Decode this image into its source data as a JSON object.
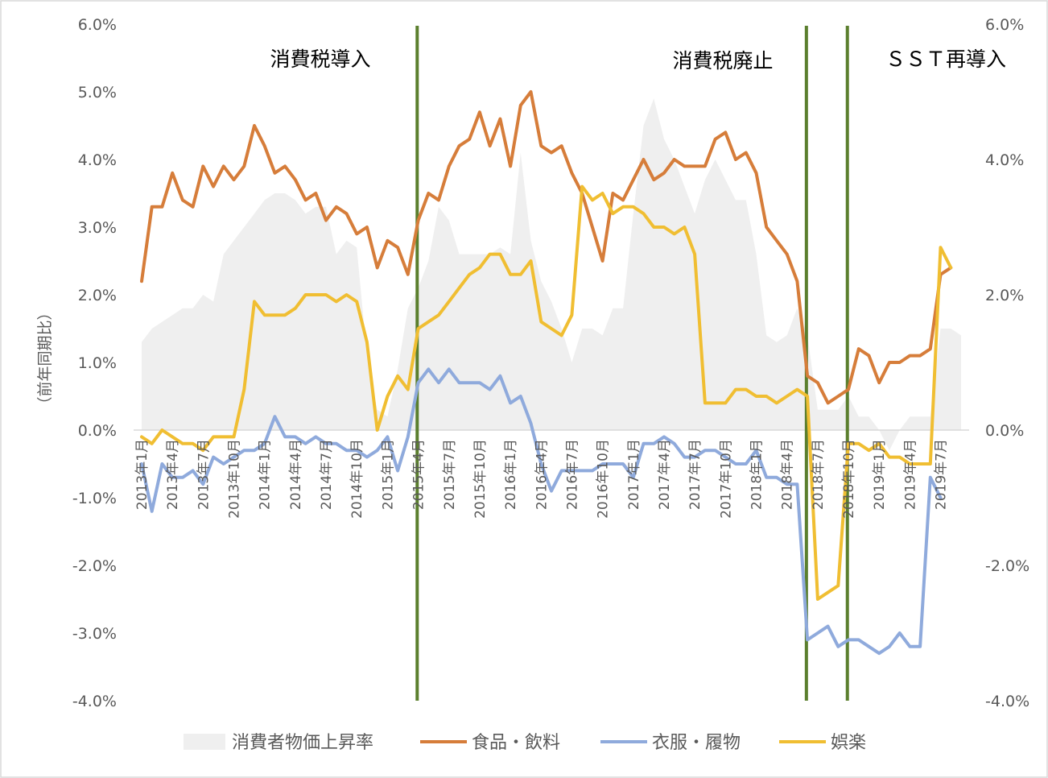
{
  "chart_data": {
    "type": "line",
    "ylabel": "（前年同期比）",
    "y_left": {
      "ticks": [
        "6.0%",
        "5.0%",
        "4.0%",
        "3.0%",
        "2.0%",
        "1.0%",
        "0.0%",
        "-1.0%",
        "-2.0%",
        "-3.0%",
        "-4.0%"
      ],
      "min": -4,
      "max": 6
    },
    "y_right": {
      "ticks": [
        "6.0%",
        "4.0%",
        "2.0%",
        "0.0%",
        "-2.0%",
        "-4.0%"
      ],
      "min": -4,
      "max": 6
    },
    "x_tick_labels": [
      "2013年1月",
      "2013年4月",
      "2013年7月",
      "2013年10月",
      "2014年1月",
      "2014年4月",
      "2014年7月",
      "2014年10月",
      "2015年1月",
      "2015年4月",
      "2015年7月",
      "2015年10月",
      "2016年1月",
      "2016年4月",
      "2016年7月",
      "2016年10月",
      "2017年1月",
      "2017年4月",
      "2017年7月",
      "2017年10月",
      "2018年1月",
      "2018年4月",
      "2018年7月",
      "2018年10月",
      "2019年1月",
      "2019年4月",
      "2019年7月"
    ],
    "x_start": "2013年1月",
    "annotations": [
      {
        "label": "消費税導入",
        "month_index": 27
      },
      {
        "label": "消費税廃止",
        "month_index": 65
      },
      {
        "label": "ＳＳＴ再導入",
        "month_index": 69
      }
    ],
    "legend_position": "bottom",
    "series": [
      {
        "name": "消費者物価上昇率",
        "kind": "area",
        "axis": "right",
        "color": "#efefef",
        "values": [
          1.3,
          1.5,
          1.6,
          1.7,
          1.8,
          1.8,
          2.0,
          1.9,
          2.6,
          2.8,
          3.0,
          3.2,
          3.4,
          3.5,
          3.5,
          3.4,
          3.2,
          3.3,
          3.3,
          2.6,
          2.8,
          2.7,
          1.1,
          0.3,
          0.2,
          0.9,
          1.8,
          2.1,
          2.5,
          3.3,
          3.1,
          2.6,
          2.6,
          2.6,
          2.6,
          2.7,
          2.6,
          4.1,
          2.8,
          2.2,
          1.9,
          1.5,
          1.0,
          1.5,
          1.5,
          1.4,
          1.8,
          1.8,
          3.2,
          4.5,
          4.9,
          4.3,
          4.0,
          3.6,
          3.2,
          3.7,
          4.0,
          3.7,
          3.4,
          3.4,
          2.6,
          1.4,
          1.3,
          1.4,
          1.8,
          1.4,
          0.3,
          0.3,
          0.3,
          0.5,
          0.2,
          0.2,
          0.0,
          -0.3,
          0.0,
          0.2,
          0.2,
          0.2,
          1.5,
          1.5,
          1.4
        ]
      },
      {
        "name": "食品・飲料",
        "kind": "line",
        "axis": "left",
        "color": "#D67D3A",
        "values": [
          2.2,
          3.3,
          3.3,
          3.8,
          3.4,
          3.3,
          3.9,
          3.6,
          3.9,
          3.7,
          3.9,
          4.5,
          4.2,
          3.8,
          3.9,
          3.7,
          3.4,
          3.5,
          3.1,
          3.3,
          3.2,
          2.9,
          3.0,
          2.4,
          2.8,
          2.7,
          2.3,
          3.1,
          3.5,
          3.4,
          3.9,
          4.2,
          4.3,
          4.7,
          4.2,
          4.6,
          3.9,
          4.8,
          5.0,
          4.2,
          4.1,
          4.2,
          3.8,
          3.5,
          3.0,
          2.5,
          3.5,
          3.4,
          3.7,
          4.0,
          3.7,
          3.8,
          4.0,
          3.9,
          3.9,
          3.9,
          4.3,
          4.4,
          4.0,
          4.1,
          3.8,
          3.0,
          2.8,
          2.6,
          2.2,
          0.8,
          0.7,
          0.4,
          0.5,
          0.6,
          1.2,
          1.1,
          0.7,
          1.0,
          1.0,
          1.1,
          1.1,
          1.2,
          2.3,
          2.4
        ]
      },
      {
        "name": "衣服・履物",
        "kind": "line",
        "axis": "left",
        "color": "#8FAADC",
        "values": [
          -0.5,
          -1.2,
          -0.5,
          -0.7,
          -0.7,
          -0.6,
          -0.8,
          -0.4,
          -0.5,
          -0.4,
          -0.3,
          -0.3,
          -0.2,
          0.2,
          -0.1,
          -0.1,
          -0.2,
          -0.1,
          -0.2,
          -0.2,
          -0.3,
          -0.3,
          -0.4,
          -0.3,
          -0.1,
          -0.6,
          -0.1,
          0.7,
          0.9,
          0.7,
          0.9,
          0.7,
          0.7,
          0.7,
          0.6,
          0.8,
          0.4,
          0.5,
          0.1,
          -0.5,
          -0.9,
          -0.6,
          -0.6,
          -0.6,
          -0.6,
          -0.5,
          -0.5,
          -0.5,
          -0.7,
          -0.2,
          -0.2,
          -0.1,
          -0.2,
          -0.4,
          -0.4,
          -0.3,
          -0.3,
          -0.4,
          -0.5,
          -0.5,
          -0.3,
          -0.7,
          -0.7,
          -0.8,
          -0.8,
          -3.1,
          -3.0,
          -2.9,
          -3.2,
          -3.1,
          -3.1,
          -3.2,
          -3.3,
          -3.2,
          -3.0,
          -3.2,
          -3.2,
          -0.7,
          -1.0
        ]
      },
      {
        "name": "娯楽",
        "kind": "line",
        "axis": "left",
        "color": "#F0BE32",
        "values": [
          -0.1,
          -0.2,
          0.0,
          -0.1,
          -0.2,
          -0.2,
          -0.3,
          -0.1,
          -0.1,
          -0.1,
          0.6,
          1.9,
          1.7,
          1.7,
          1.7,
          1.8,
          2.0,
          2.0,
          2.0,
          1.9,
          2.0,
          1.9,
          1.3,
          0.0,
          0.5,
          0.8,
          0.6,
          1.5,
          1.6,
          1.7,
          1.9,
          2.1,
          2.3,
          2.4,
          2.6,
          2.6,
          2.3,
          2.3,
          2.5,
          1.6,
          1.5,
          1.4,
          1.7,
          3.6,
          3.4,
          3.5,
          3.2,
          3.3,
          3.3,
          3.2,
          3.0,
          3.0,
          2.9,
          3.0,
          2.6,
          0.4,
          0.4,
          0.4,
          0.6,
          0.6,
          0.5,
          0.5,
          0.4,
          0.5,
          0.6,
          0.5,
          -2.5,
          -2.4,
          -2.3,
          -0.2,
          -0.2,
          -0.3,
          -0.2,
          -0.4,
          -0.4,
          -0.5,
          -0.5,
          -0.5,
          2.7,
          2.4
        ]
      }
    ]
  },
  "legend": {
    "items": [
      "消費者物価上昇率",
      "食品・飲料",
      "衣服・履物",
      "娯楽"
    ]
  }
}
